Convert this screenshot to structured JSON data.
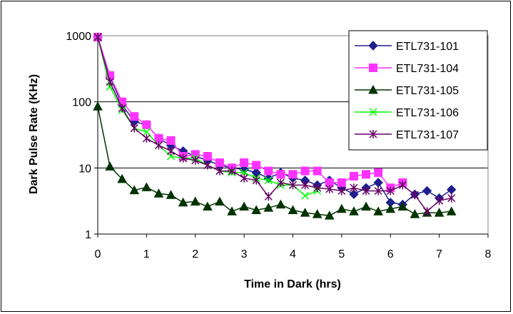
{
  "chart_data": {
    "type": "line",
    "xlabel": "Time in Dark (hrs)",
    "ylabel": "Dark Pulse Rate (KHz)",
    "xlim": [
      0,
      8
    ],
    "ylim": [
      1,
      1000
    ],
    "yscale": "log",
    "xticks": [
      "0",
      "1",
      "2",
      "3",
      "4",
      "5",
      "6",
      "7",
      "8"
    ],
    "yticks": [
      "1",
      "10",
      "100",
      "1000"
    ],
    "grid": "horizontal",
    "legend_position": "top-right",
    "x": [
      0,
      0.25,
      0.5,
      0.75,
      1,
      1.25,
      1.5,
      1.75,
      2,
      2.25,
      2.5,
      2.75,
      3,
      3.25,
      3.5,
      3.75,
      4,
      4.25,
      4.5,
      4.75,
      5,
      5.25,
      5.5,
      5.75,
      6,
      6.25,
      6.5,
      6.75,
      7,
      7.25
    ],
    "series": [
      {
        "name": "ETL731-101",
        "color": "#1f1f8f",
        "marker": "diamond",
        "values": [
          950,
          240,
          90,
          50,
          45,
          28,
          22,
          18,
          15,
          13,
          11,
          10,
          9.5,
          8.5,
          7,
          8.5,
          7,
          6.5,
          5.5,
          6.5,
          5,
          4,
          5,
          6,
          3,
          2.8,
          4,
          4.5,
          3.5,
          4.7
        ]
      },
      {
        "name": "ETL731-104",
        "color": "#ff33ff",
        "marker": "square",
        "values": [
          950,
          250,
          100,
          60,
          45,
          28,
          26,
          15,
          16,
          15,
          12,
          10,
          12,
          11,
          9,
          8,
          8,
          9,
          9,
          6,
          6,
          7.5,
          8,
          8.5,
          5,
          6,
          null,
          null,
          null,
          null
        ]
      },
      {
        "name": "ETL731-105",
        "color": "#003300",
        "marker": "triangle",
        "values": [
          85,
          10.5,
          6.8,
          4.6,
          5.1,
          4.1,
          3.9,
          3,
          3.1,
          2.6,
          3.1,
          2.2,
          2.6,
          2.3,
          2.5,
          2.8,
          2.3,
          2.1,
          2,
          1.9,
          2.4,
          2.2,
          2.6,
          2.2,
          2.4,
          2.6,
          2,
          2.1,
          2.1,
          2.2
        ]
      },
      {
        "name": "ETL731-106",
        "color": "#00ff00",
        "marker": "x",
        "values": [
          950,
          170,
          75,
          40,
          35,
          22,
          15,
          14,
          14,
          11,
          9,
          8.5,
          8.5,
          7,
          6.5,
          5.5,
          5.5,
          3.8,
          4.5,
          null,
          null,
          null,
          null,
          null,
          null,
          null,
          null,
          null,
          null,
          null
        ]
      },
      {
        "name": "ETL731-107",
        "color": "#660066",
        "marker": "star",
        "values": [
          950,
          200,
          80,
          40,
          28,
          22,
          18,
          14,
          13,
          11,
          9,
          9,
          7,
          6.5,
          3.7,
          6,
          5.5,
          5.5,
          5,
          4.8,
          4.5,
          5,
          4.5,
          4.5,
          4.5,
          5.5,
          3.9,
          2.2,
          3.2,
          3.5
        ]
      }
    ]
  }
}
